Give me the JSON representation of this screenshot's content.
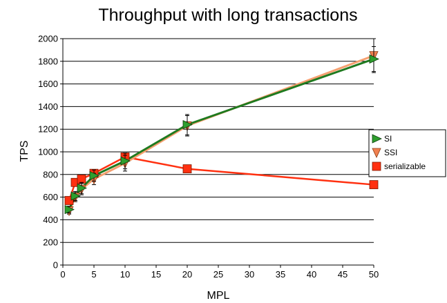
{
  "chart_data": {
    "type": "line",
    "title": "Throughput with long transactions",
    "xlabel": "MPL",
    "ylabel": "TPS",
    "xlim": [
      0,
      50
    ],
    "ylim": [
      0,
      2000
    ],
    "x_ticks": [
      0,
      5,
      10,
      15,
      20,
      25,
      30,
      35,
      40,
      45,
      50
    ],
    "y_ticks": [
      0,
      200,
      400,
      600,
      800,
      1000,
      1200,
      1400,
      1600,
      1800,
      2000
    ],
    "grid": "horizontal",
    "legend_position": "right",
    "series": [
      {
        "name": "SI",
        "marker": "triangle-right",
        "line_color": "#1f7a1f",
        "marker_color": "#2e9e2e",
        "points": [
          {
            "x": 1,
            "y": 490,
            "err": 30
          },
          {
            "x": 2,
            "y": 610,
            "err": 40
          },
          {
            "x": 3,
            "y": 680,
            "err": 50
          },
          {
            "x": 5,
            "y": 790,
            "err": 50
          },
          {
            "x": 10,
            "y": 920,
            "err": 70
          },
          {
            "x": 20,
            "y": 1240,
            "err": 90
          },
          {
            "x": 50,
            "y": 1820,
            "err": 110
          }
        ]
      },
      {
        "name": "SSI",
        "marker": "triangle-down",
        "line_color": "#f5a070",
        "marker_color": "#f08050",
        "points": [
          {
            "x": 1,
            "y": 480,
            "err": 30
          },
          {
            "x": 2,
            "y": 600,
            "err": 40
          },
          {
            "x": 3,
            "y": 670,
            "err": 50
          },
          {
            "x": 5,
            "y": 760,
            "err": 50
          },
          {
            "x": 10,
            "y": 900,
            "err": 70
          },
          {
            "x": 20,
            "y": 1230,
            "err": 90
          },
          {
            "x": 50,
            "y": 1850,
            "err": 150
          }
        ]
      },
      {
        "name": "serializable",
        "marker": "square",
        "line_color": "#ff3010",
        "marker_color": "#ff3010",
        "points": [
          {
            "x": 1,
            "y": 570,
            "err": 15
          },
          {
            "x": 2,
            "y": 730,
            "err": 20
          },
          {
            "x": 3,
            "y": 760,
            "err": 20
          },
          {
            "x": 5,
            "y": 810,
            "err": 20
          },
          {
            "x": 10,
            "y": 955,
            "err": 20
          },
          {
            "x": 20,
            "y": 850,
            "err": 20
          },
          {
            "x": 50,
            "y": 710,
            "err": 15
          }
        ]
      }
    ]
  }
}
